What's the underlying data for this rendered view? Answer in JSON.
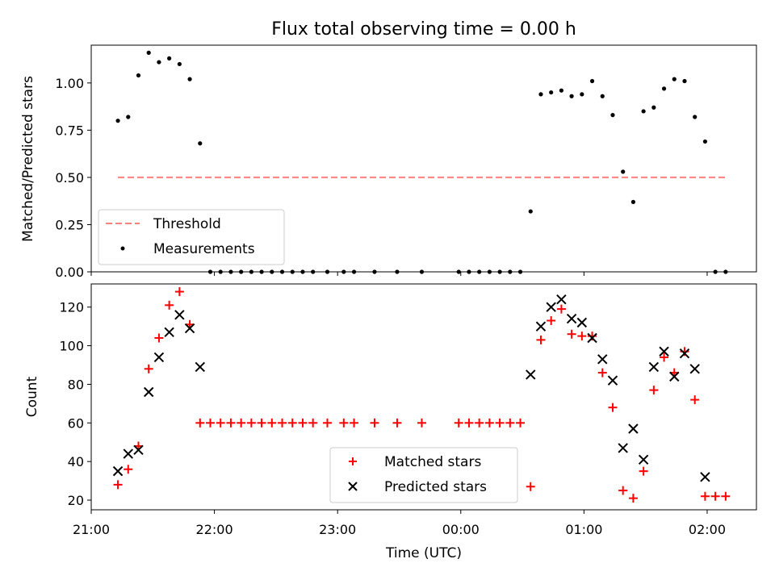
{
  "chart_data": [
    {
      "type": "scatter",
      "title": "Flux total observing time = 0.00 h",
      "ylabel": "Matched/Predicted stars",
      "xlabel": "",
      "xlim": [
        "21:00",
        "02:24"
      ],
      "ylim": [
        0,
        1.2
      ],
      "yticks": [
        "0.00",
        "0.25",
        "0.50",
        "0.75",
        "1.00"
      ],
      "grid": false,
      "legend_position": "lower-left",
      "threshold": {
        "name": "Threshold",
        "value": 0.5,
        "x_start": "21:13",
        "x_end": "02:10",
        "color": "#ff7f7f",
        "style": "dashed"
      },
      "series": [
        {
          "name": "Measurements",
          "color": "#000000",
          "marker": "dot",
          "points": [
            [
              "21:13",
              0.8
            ],
            [
              "21:18",
              0.82
            ],
            [
              "21:23",
              1.04
            ],
            [
              "21:28",
              1.16
            ],
            [
              "21:33",
              1.11
            ],
            [
              "21:38",
              1.13
            ],
            [
              "21:43",
              1.1
            ],
            [
              "21:48",
              1.02
            ],
            [
              "21:53",
              0.68
            ],
            [
              "21:58",
              0
            ],
            [
              "22:03",
              0
            ],
            [
              "22:08",
              0
            ],
            [
              "22:13",
              0
            ],
            [
              "22:18",
              0
            ],
            [
              "22:23",
              0
            ],
            [
              "22:28",
              0
            ],
            [
              "22:33",
              0
            ],
            [
              "22:38",
              0
            ],
            [
              "22:43",
              0
            ],
            [
              "22:48",
              0
            ],
            [
              "22:55",
              0
            ],
            [
              "23:03",
              0
            ],
            [
              "23:08",
              0
            ],
            [
              "23:18",
              0
            ],
            [
              "23:29",
              0
            ],
            [
              "23:41",
              0
            ],
            [
              "23:59",
              0
            ],
            [
              "00:04",
              0
            ],
            [
              "00:09",
              0
            ],
            [
              "00:14",
              0
            ],
            [
              "00:19",
              0
            ],
            [
              "00:24",
              0
            ],
            [
              "00:29",
              0
            ],
            [
              "00:34",
              0.32
            ],
            [
              "00:39",
              0.94
            ],
            [
              "00:44",
              0.95
            ],
            [
              "00:49",
              0.96
            ],
            [
              "00:54",
              0.93
            ],
            [
              "00:59",
              0.94
            ],
            [
              "01:04",
              1.01
            ],
            [
              "01:09",
              0.93
            ],
            [
              "01:14",
              0.83
            ],
            [
              "01:19",
              0.53
            ],
            [
              "01:24",
              0.37
            ],
            [
              "01:29",
              0.85
            ],
            [
              "01:34",
              0.87
            ],
            [
              "01:39",
              0.97
            ],
            [
              "01:44",
              1.02
            ],
            [
              "01:49",
              1.01
            ],
            [
              "01:54",
              0.82
            ],
            [
              "01:59",
              0.69
            ],
            [
              "02:04",
              0
            ],
            [
              "02:09",
              0
            ]
          ]
        }
      ]
    },
    {
      "type": "scatter",
      "title": "",
      "ylabel": "Count",
      "xlabel": "Time (UTC)",
      "xlim": [
        "21:00",
        "02:24"
      ],
      "ylim": [
        15,
        132
      ],
      "yticks": [
        "20",
        "40",
        "60",
        "80",
        "100",
        "120"
      ],
      "xticks": [
        "21:00",
        "22:00",
        "23:00",
        "00:00",
        "01:00",
        "02:00"
      ],
      "grid": false,
      "legend_position": "lower-center",
      "series": [
        {
          "name": "Matched stars",
          "color": "#ff0000",
          "marker": "plus",
          "points": [
            [
              "21:13",
              28
            ],
            [
              "21:18",
              36
            ],
            [
              "21:23",
              48
            ],
            [
              "21:28",
              88
            ],
            [
              "21:33",
              104
            ],
            [
              "21:38",
              121
            ],
            [
              "21:43",
              128
            ],
            [
              "21:48",
              111
            ],
            [
              "21:53",
              60
            ],
            [
              "21:58",
              60
            ],
            [
              "22:03",
              60
            ],
            [
              "22:08",
              60
            ],
            [
              "22:13",
              60
            ],
            [
              "22:18",
              60
            ],
            [
              "22:23",
              60
            ],
            [
              "22:28",
              60
            ],
            [
              "22:33",
              60
            ],
            [
              "22:38",
              60
            ],
            [
              "22:43",
              60
            ],
            [
              "22:48",
              60
            ],
            [
              "22:55",
              60
            ],
            [
              "23:03",
              60
            ],
            [
              "23:08",
              60
            ],
            [
              "23:18",
              60
            ],
            [
              "23:29",
              60
            ],
            [
              "23:41",
              60
            ],
            [
              "23:59",
              60
            ],
            [
              "00:04",
              60
            ],
            [
              "00:09",
              60
            ],
            [
              "00:14",
              60
            ],
            [
              "00:19",
              60
            ],
            [
              "00:24",
              60
            ],
            [
              "00:29",
              60
            ],
            [
              "00:34",
              27
            ],
            [
              "00:39",
              103
            ],
            [
              "00:44",
              113
            ],
            [
              "00:49",
              119
            ],
            [
              "00:54",
              106
            ],
            [
              "00:59",
              105
            ],
            [
              "01:04",
              105
            ],
            [
              "01:09",
              86
            ],
            [
              "01:14",
              68
            ],
            [
              "01:19",
              25
            ],
            [
              "01:24",
              21
            ],
            [
              "01:29",
              35
            ],
            [
              "01:34",
              77
            ],
            [
              "01:39",
              94
            ],
            [
              "01:44",
              86
            ],
            [
              "01:49",
              97
            ],
            [
              "01:54",
              72
            ],
            [
              "01:59",
              22
            ],
            [
              "02:04",
              22
            ],
            [
              "02:09",
              22
            ]
          ]
        },
        {
          "name": "Predicted stars",
          "color": "#000000",
          "marker": "x",
          "points": [
            [
              "21:13",
              35
            ],
            [
              "21:18",
              44
            ],
            [
              "21:23",
              46
            ],
            [
              "21:28",
              76
            ],
            [
              "21:33",
              94
            ],
            [
              "21:38",
              107
            ],
            [
              "21:43",
              116
            ],
            [
              "21:48",
              109
            ],
            [
              "21:53",
              89
            ],
            [
              "00:34",
              85
            ],
            [
              "00:39",
              110
            ],
            [
              "00:44",
              120
            ],
            [
              "00:49",
              124
            ],
            [
              "00:54",
              114
            ],
            [
              "00:59",
              112
            ],
            [
              "01:04",
              104
            ],
            [
              "01:09",
              93
            ],
            [
              "01:14",
              82
            ],
            [
              "01:19",
              47
            ],
            [
              "01:24",
              57
            ],
            [
              "01:29",
              41
            ],
            [
              "01:34",
              89
            ],
            [
              "01:39",
              97
            ],
            [
              "01:44",
              84
            ],
            [
              "01:49",
              96
            ],
            [
              "01:54",
              88
            ],
            [
              "01:59",
              32
            ]
          ]
        }
      ]
    }
  ]
}
